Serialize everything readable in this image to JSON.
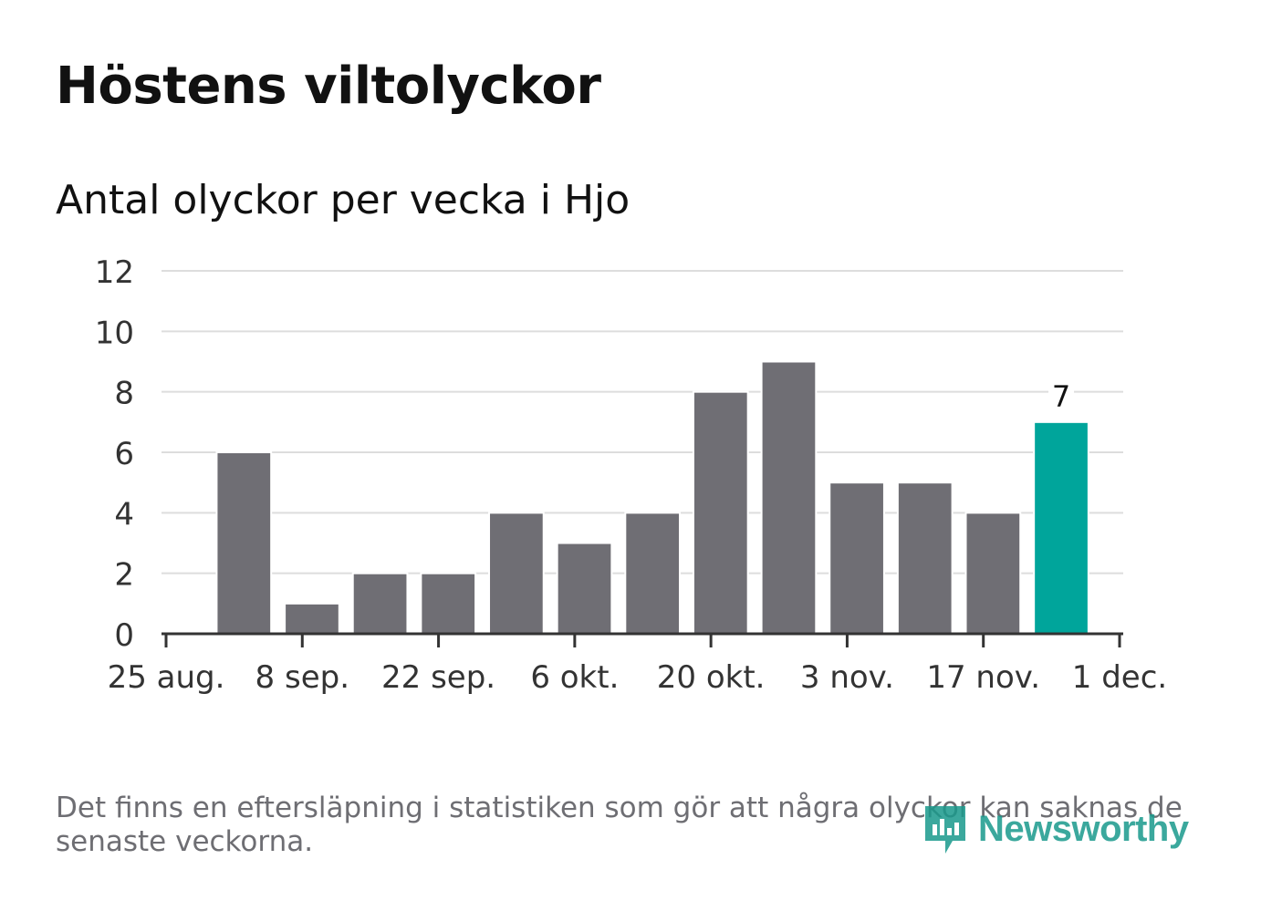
{
  "title": "Höstens viltolyckor",
  "subtitle": "Antal olyckor per vecka i Hjo",
  "note": "Det finns en eftersläpning i statistiken som gör att några olyckor kan saknas de senaste veckorna.",
  "logo": {
    "text": "Newsworthy",
    "icon": "chart-bubble-icon",
    "color": "#1a9a8c"
  },
  "colors": {
    "bar": "#6f6e74",
    "highlight": "#00a59b",
    "grid": "#dddddd",
    "axis": "#333333",
    "text": "#333333"
  },
  "chart_data": {
    "type": "bar",
    "x": [
      "2019-09-02",
      "2019-09-09",
      "2019-09-16",
      "2019-09-23",
      "2019-09-30",
      "2019-10-07",
      "2019-10-14",
      "2019-10-21",
      "2019-10-28",
      "2019-11-04",
      "2019-11-11",
      "2019-11-18",
      "2019-11-25"
    ],
    "values": [
      6,
      1,
      2,
      2,
      4,
      3,
      4,
      8,
      9,
      5,
      5,
      4,
      7
    ],
    "highlight_last": true,
    "data_labels": [
      {
        "index": 12,
        "text": "7"
      }
    ],
    "xlim": [
      "2019-08-25",
      "2019-12-01"
    ],
    "xticks": [
      {
        "date": "2019-08-25",
        "label": "25 aug."
      },
      {
        "date": "2019-09-08",
        "label": "8 sep."
      },
      {
        "date": "2019-09-22",
        "label": "22 sep."
      },
      {
        "date": "2019-10-06",
        "label": "6 okt."
      },
      {
        "date": "2019-10-20",
        "label": "20 okt."
      },
      {
        "date": "2019-11-03",
        "label": "3 nov."
      },
      {
        "date": "2019-11-17",
        "label": "17 nov."
      },
      {
        "date": "2019-12-01",
        "label": "1 dec."
      }
    ],
    "ylim": [
      0,
      12
    ],
    "yticks": [
      0,
      2,
      4,
      6,
      8,
      10,
      12
    ],
    "grid": true,
    "legend": "none"
  }
}
